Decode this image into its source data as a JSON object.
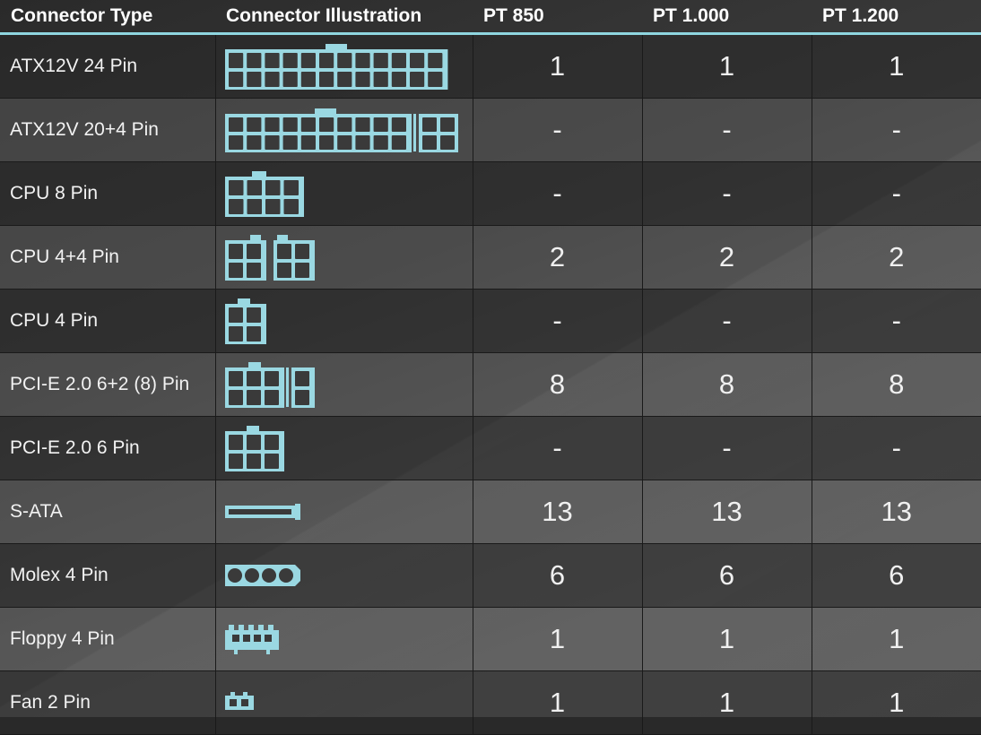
{
  "table": {
    "headers": [
      "Connector Type",
      "Connector Illustration",
      "PT 850",
      "PT 1.000",
      "PT 1.200"
    ],
    "rows": [
      {
        "type": "ATX12V 24 Pin",
        "icon": "atx24-connector-icon",
        "values": [
          "1",
          "1",
          "1"
        ]
      },
      {
        "type": "ATX12V 20+4 Pin",
        "icon": "atx20-4-connector-icon",
        "values": [
          "-",
          "-",
          "-"
        ]
      },
      {
        "type": "CPU 8 Pin",
        "icon": "cpu8-connector-icon",
        "values": [
          "-",
          "-",
          "-"
        ]
      },
      {
        "type": "CPU 4+4 Pin",
        "icon": "cpu4-4-connector-icon",
        "values": [
          "2",
          "2",
          "2"
        ]
      },
      {
        "type": "CPU 4 Pin",
        "icon": "cpu4-connector-icon",
        "values": [
          "-",
          "-",
          "-"
        ]
      },
      {
        "type": "PCI-E 2.0 6+2 (8) Pin",
        "icon": "pcie6-2-connector-icon",
        "values": [
          "8",
          "8",
          "8"
        ]
      },
      {
        "type": "PCI-E 2.0 6 Pin",
        "icon": "pcie6-connector-icon",
        "values": [
          "-",
          "-",
          "-"
        ]
      },
      {
        "type": "S-ATA",
        "icon": "sata-connector-icon",
        "values": [
          "13",
          "13",
          "13"
        ]
      },
      {
        "type": "Molex 4 Pin",
        "icon": "molex-connector-icon",
        "values": [
          "6",
          "6",
          "6"
        ]
      },
      {
        "type": "Floppy 4 Pin",
        "icon": "floppy-connector-icon",
        "values": [
          "1",
          "1",
          "1"
        ]
      },
      {
        "type": "Fan 2 Pin",
        "icon": "fan-connector-icon",
        "values": [
          "1",
          "1",
          "1"
        ]
      }
    ]
  },
  "colors": {
    "accent": "#9ad8e2",
    "header_rule": "#8fd6e0"
  }
}
